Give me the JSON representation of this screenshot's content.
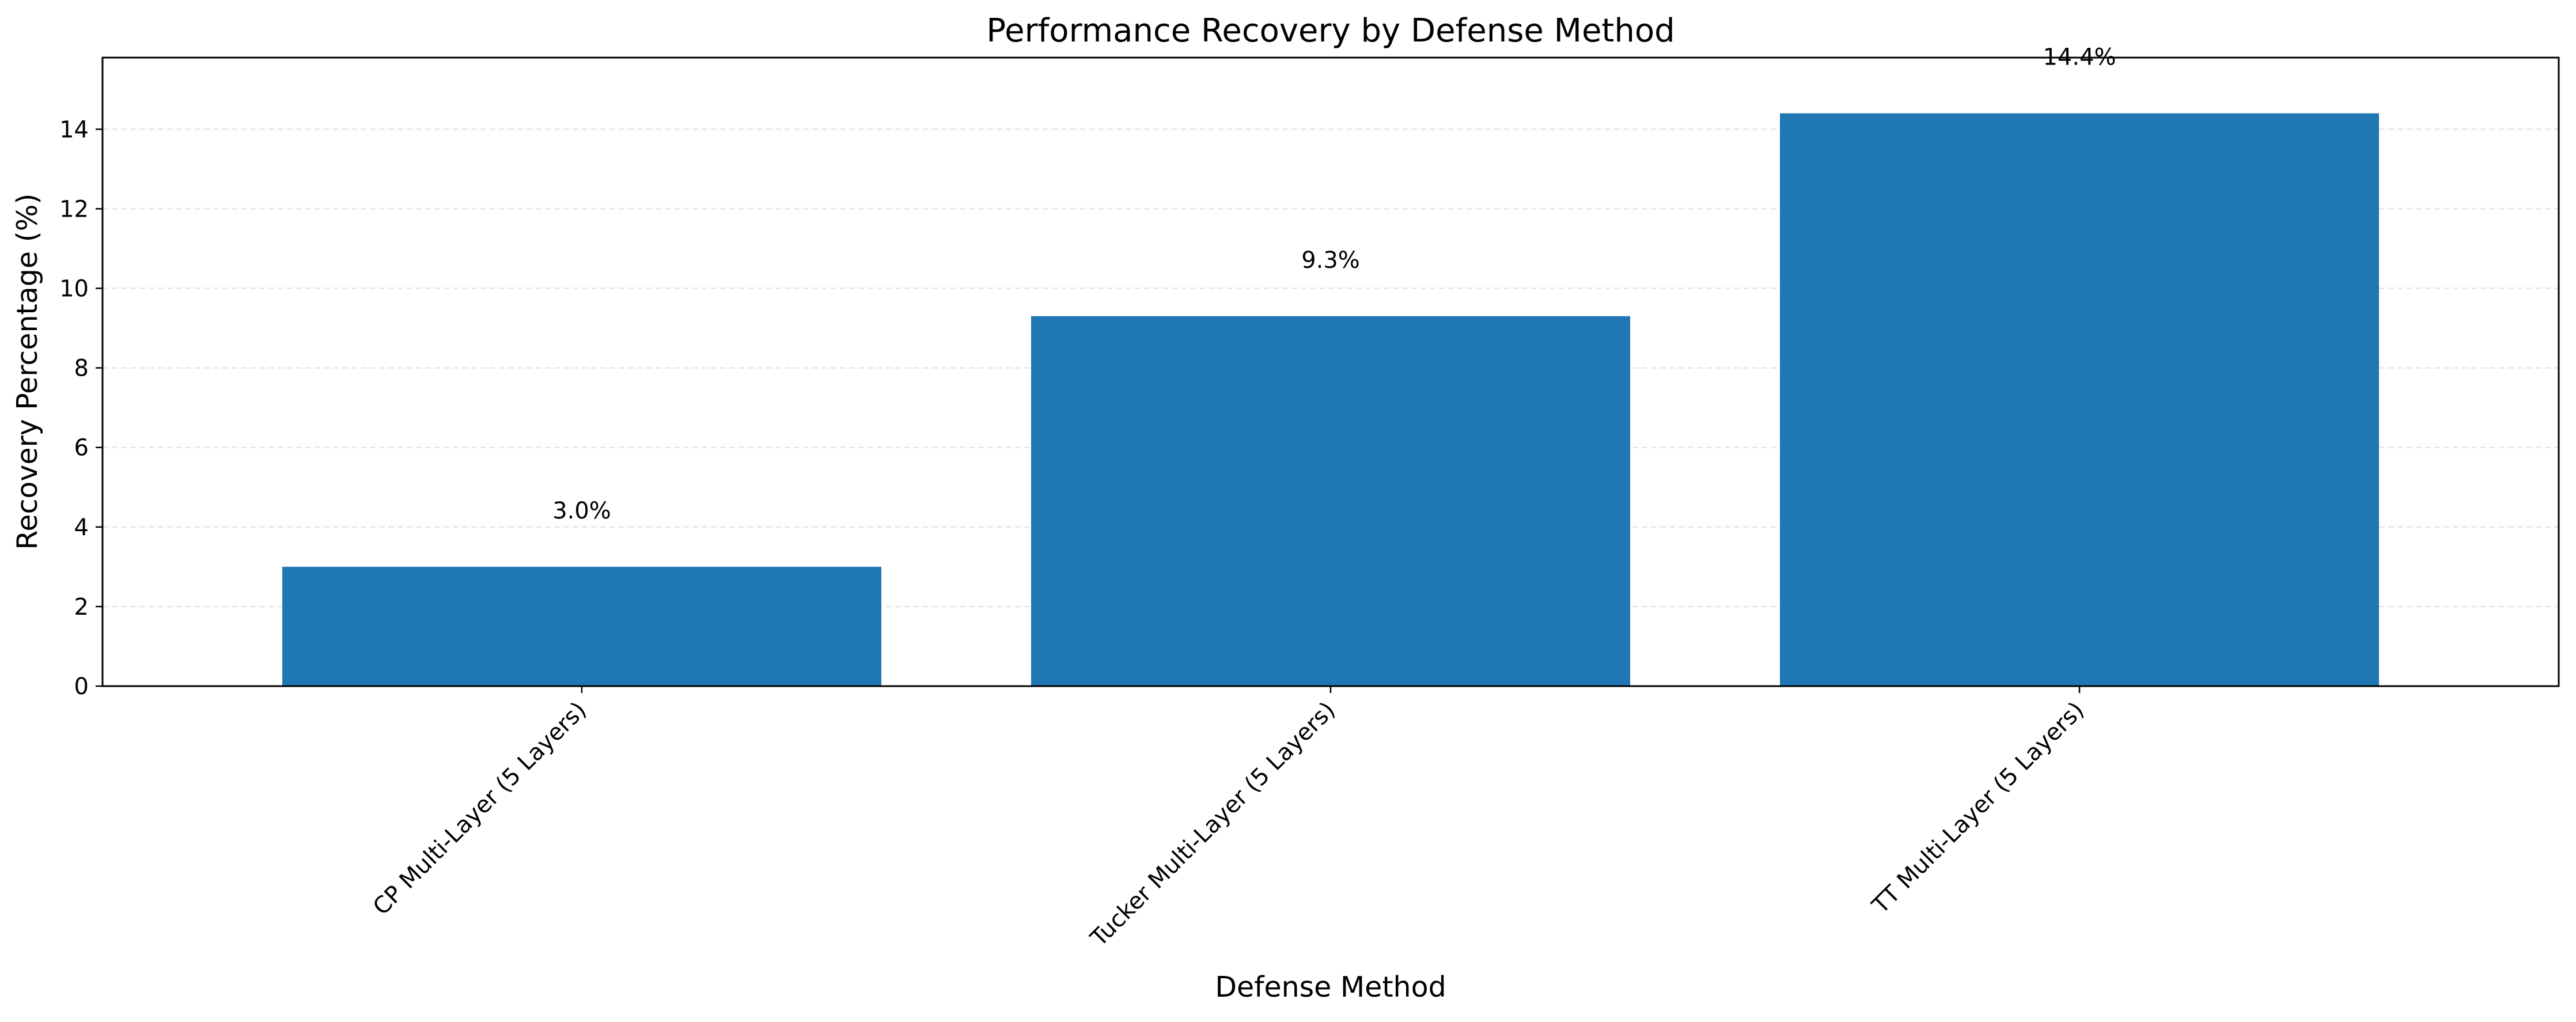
{
  "chart_data": {
    "type": "bar",
    "title": "Performance Recovery by Defense Method",
    "xlabel": "Defense Method",
    "ylabel": "Recovery Percentage (%)",
    "categories": [
      "CP Multi-Layer (5 Layers)",
      "Tucker Multi-Layer (5 Layers)",
      "TT Multi-Layer (5 Layers)"
    ],
    "values": [
      3.0,
      9.3,
      14.4
    ],
    "value_labels": [
      "3.0%",
      "9.3%",
      "14.4%"
    ],
    "ylim": [
      0,
      15.8
    ],
    "yticks": [
      0,
      2,
      4,
      6,
      8,
      10,
      12,
      14
    ],
    "ytick_labels": [
      "0",
      "2",
      "4",
      "6",
      "8",
      "10",
      "12",
      "14"
    ],
    "grid": "y-axis, dashed",
    "legend": "none",
    "bar_color": "#1f77b4",
    "grid_color": "#e6e6e6"
  }
}
